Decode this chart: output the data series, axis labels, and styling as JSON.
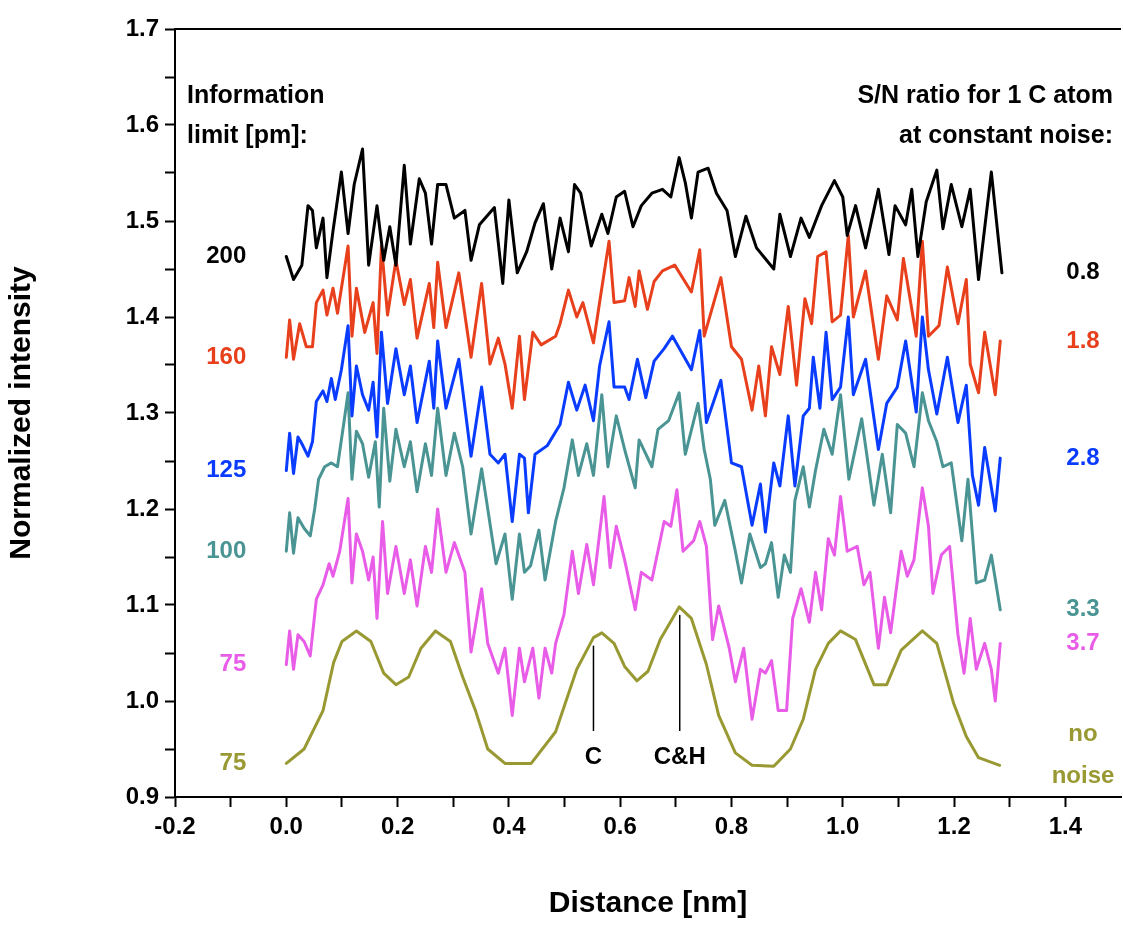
{
  "chart_data": {
    "type": "line",
    "xlabel": "Distance [nm]",
    "ylabel": "Normalized intensity",
    "xlim": [
      -0.2,
      1.5
    ],
    "ylim": [
      0.9,
      1.7
    ],
    "xticks": [
      -0.2,
      {
        "value": -0.1,
        "label": null
      },
      {
        "value": 0,
        "label": "0.0"
      },
      {
        "value": 0.1,
        "label": null
      },
      0.2,
      {
        "value": 0.3,
        "label": null
      },
      0.4,
      {
        "value": 0.5,
        "label": null
      },
      0.6,
      {
        "value": 0.7,
        "label": null
      },
      0.8,
      {
        "value": 0.9,
        "label": null
      },
      {
        "value": 1,
        "label": "1.0"
      },
      {
        "value": 1.1,
        "label": null
      },
      1.2,
      {
        "value": 1.3,
        "label": null
      },
      1.4
    ],
    "yticks": [
      0.9,
      {
        "value": 0.95,
        "label": null
      },
      {
        "value": 1,
        "label": "1.0"
      },
      {
        "value": 1.05,
        "label": null
      },
      1.1,
      {
        "value": 1.15,
        "label": null
      },
      1.2,
      {
        "value": 1.25,
        "label": null
      },
      1.3,
      {
        "value": 1.35,
        "label": null
      },
      1.4,
      {
        "value": 1.45,
        "label": null
      },
      1.5,
      {
        "value": 1.55,
        "label": null
      },
      1.6,
      {
        "value": 1.65,
        "label": null
      },
      1.7
    ],
    "series": [
      {
        "name": "200",
        "color": "#000000",
        "x": [
          0.0,
          0.013,
          0.028,
          0.039,
          0.047,
          0.054,
          0.066,
          0.073,
          0.084,
          0.099,
          0.111,
          0.122,
          0.137,
          0.148,
          0.163,
          0.175,
          0.186,
          0.197,
          0.212,
          0.223,
          0.239,
          0.25,
          0.261,
          0.272,
          0.287,
          0.302,
          0.321,
          0.332,
          0.347,
          0.374,
          0.389,
          0.4,
          0.415,
          0.432,
          0.447,
          0.462,
          0.477,
          0.492,
          0.507,
          0.518,
          0.529,
          0.548,
          0.567,
          0.578,
          0.593,
          0.608,
          0.623,
          0.638,
          0.657,
          0.676,
          0.691,
          0.706,
          0.717,
          0.728,
          0.74,
          0.758,
          0.773,
          0.792,
          0.807,
          0.826,
          0.845,
          0.876,
          0.887,
          0.906,
          0.925,
          0.94,
          0.962,
          0.985,
          1.0,
          1.008,
          1.023,
          1.041,
          1.064,
          1.083,
          1.094,
          1.113,
          1.124,
          1.135,
          1.15,
          1.169,
          1.18,
          1.195,
          1.214,
          1.229,
          1.244,
          1.267,
          1.286
        ],
        "values": [
          1.463,
          1.439,
          1.454,
          1.516,
          1.511,
          1.472,
          1.503,
          1.441,
          1.49,
          1.551,
          1.487,
          1.538,
          1.575,
          1.454,
          1.516,
          1.459,
          1.494,
          1.454,
          1.558,
          1.476,
          1.544,
          1.529,
          1.476,
          1.538,
          1.538,
          1.503,
          1.511,
          1.459,
          1.496,
          1.514,
          1.435,
          1.522,
          1.446,
          1.468,
          1.498,
          1.518,
          1.45,
          1.503,
          1.468,
          1.538,
          1.529,
          1.474,
          1.507,
          1.487,
          1.525,
          1.531,
          1.494,
          1.516,
          1.529,
          1.533,
          1.525,
          1.566,
          1.54,
          1.503,
          1.551,
          1.555,
          1.529,
          1.511,
          1.463,
          1.505,
          1.472,
          1.45,
          1.507,
          1.463,
          1.503,
          1.483,
          1.516,
          1.542,
          1.525,
          1.485,
          1.516,
          1.472,
          1.533,
          1.465,
          1.516,
          1.496,
          1.533,
          1.463,
          1.52,
          1.553,
          1.492,
          1.538,
          1.494,
          1.533,
          1.439,
          1.551,
          1.446
        ]
      },
      {
        "name": "160",
        "color": "#e8401c",
        "x": [
          0.0,
          0.006,
          0.013,
          0.024,
          0.036,
          0.047,
          0.054,
          0.066,
          0.073,
          0.084,
          0.092,
          0.111,
          0.118,
          0.126,
          0.141,
          0.156,
          0.163,
          0.171,
          0.182,
          0.197,
          0.212,
          0.223,
          0.235,
          0.257,
          0.265,
          0.272,
          0.287,
          0.31,
          0.332,
          0.351,
          0.366,
          0.381,
          0.393,
          0.406,
          0.419,
          0.428,
          0.443,
          0.458,
          0.484,
          0.492,
          0.507,
          0.522,
          0.533,
          0.552,
          0.563,
          0.58,
          0.589,
          0.608,
          0.616,
          0.627,
          0.634,
          0.649,
          0.661,
          0.676,
          0.698,
          0.728,
          0.743,
          0.751,
          0.781,
          0.8,
          0.818,
          0.837,
          0.849,
          0.861,
          0.872,
          0.887,
          0.902,
          0.917,
          0.932,
          0.944,
          0.955,
          0.97,
          0.981,
          0.996,
          1.01,
          1.019,
          1.041,
          1.064,
          1.079,
          1.098,
          1.109,
          1.132,
          1.143,
          1.154,
          1.173,
          1.188,
          1.207,
          1.222,
          1.229,
          1.244,
          1.255,
          1.274,
          1.283
        ],
        "values": [
          1.358,
          1.397,
          1.356,
          1.393,
          1.369,
          1.369,
          1.415,
          1.428,
          1.402,
          1.43,
          1.404,
          1.474,
          1.38,
          1.43,
          1.384,
          1.415,
          1.362,
          1.474,
          1.402,
          1.459,
          1.413,
          1.439,
          1.378,
          1.435,
          1.389,
          1.457,
          1.389,
          1.446,
          1.358,
          1.435,
          1.351,
          1.378,
          1.351,
          1.305,
          1.38,
          1.314,
          1.384,
          1.371,
          1.38,
          1.393,
          1.428,
          1.4,
          1.415,
          1.373,
          1.415,
          1.479,
          1.415,
          1.417,
          1.441,
          1.411,
          1.448,
          1.408,
          1.437,
          1.448,
          1.454,
          1.426,
          1.47,
          1.38,
          1.441,
          1.369,
          1.356,
          1.303,
          1.349,
          1.297,
          1.369,
          1.34,
          1.411,
          1.329,
          1.419,
          1.393,
          1.463,
          1.468,
          1.395,
          1.402,
          1.485,
          1.4,
          1.448,
          1.356,
          1.422,
          1.397,
          1.461,
          1.38,
          1.479,
          1.38,
          1.391,
          1.452,
          1.393,
          1.439,
          1.351,
          1.321,
          1.384,
          1.319,
          1.375
        ]
      },
      {
        "name": "125",
        "color": "#0a3cff",
        "x": [
          0.0,
          0.006,
          0.013,
          0.021,
          0.028,
          0.039,
          0.047,
          0.054,
          0.066,
          0.073,
          0.081,
          0.088,
          0.099,
          0.111,
          0.118,
          0.126,
          0.137,
          0.148,
          0.156,
          0.163,
          0.171,
          0.182,
          0.197,
          0.212,
          0.223,
          0.235,
          0.257,
          0.265,
          0.272,
          0.287,
          0.31,
          0.332,
          0.351,
          0.366,
          0.381,
          0.393,
          0.406,
          0.419,
          0.428,
          0.435,
          0.447,
          0.469,
          0.492,
          0.507,
          0.522,
          0.537,
          0.552,
          0.563,
          0.58,
          0.589,
          0.608,
          0.616,
          0.631,
          0.646,
          0.661,
          0.679,
          0.694,
          0.728,
          0.743,
          0.755,
          0.781,
          0.8,
          0.818,
          0.837,
          0.852,
          0.861,
          0.876,
          0.887,
          0.902,
          0.914,
          0.929,
          0.94,
          0.947,
          0.959,
          0.97,
          0.981,
          0.996,
          1.01,
          1.019,
          1.041,
          1.064,
          1.079,
          1.098,
          1.113,
          1.132,
          1.143,
          1.154,
          1.169,
          1.188,
          1.207,
          1.222,
          1.233,
          1.244,
          1.255,
          1.274,
          1.283
        ],
        "values": [
          1.24,
          1.279,
          1.237,
          1.275,
          1.268,
          1.255,
          1.27,
          1.312,
          1.323,
          1.312,
          1.336,
          1.314,
          1.345,
          1.391,
          1.297,
          1.349,
          1.319,
          1.303,
          1.332,
          1.275,
          1.384,
          1.31,
          1.367,
          1.319,
          1.349,
          1.29,
          1.354,
          1.305,
          1.375,
          1.305,
          1.356,
          1.255,
          1.327,
          1.257,
          1.248,
          1.257,
          1.187,
          1.257,
          1.253,
          1.196,
          1.257,
          1.266,
          1.288,
          1.332,
          1.303,
          1.329,
          1.292,
          1.349,
          1.395,
          1.327,
          1.327,
          1.314,
          1.356,
          1.316,
          1.354,
          1.367,
          1.38,
          1.345,
          1.386,
          1.29,
          1.334,
          1.248,
          1.244,
          1.183,
          1.226,
          1.176,
          1.248,
          1.224,
          1.297,
          1.224,
          1.297,
          1.305,
          1.358,
          1.305,
          1.384,
          1.314,
          1.327,
          1.4,
          1.319,
          1.356,
          1.262,
          1.31,
          1.327,
          1.375,
          1.301,
          1.4,
          1.345,
          1.299,
          1.358,
          1.29,
          1.329,
          1.235,
          1.204,
          1.264,
          1.198,
          1.253
        ]
      },
      {
        "name": "100",
        "color": "#4a9494",
        "x": [
          0.0,
          0.006,
          0.013,
          0.021,
          0.032,
          0.043,
          0.051,
          0.058,
          0.069,
          0.081,
          0.092,
          0.103,
          0.111,
          0.118,
          0.126,
          0.137,
          0.148,
          0.16,
          0.167,
          0.175,
          0.186,
          0.197,
          0.212,
          0.223,
          0.235,
          0.25,
          0.261,
          0.272,
          0.287,
          0.302,
          0.317,
          0.332,
          0.351,
          0.366,
          0.377,
          0.393,
          0.406,
          0.419,
          0.428,
          0.439,
          0.454,
          0.465,
          0.484,
          0.499,
          0.514,
          0.525,
          0.54,
          0.552,
          0.567,
          0.578,
          0.593,
          0.608,
          0.627,
          0.634,
          0.657,
          0.668,
          0.687,
          0.706,
          0.717,
          0.74,
          0.751,
          0.762,
          0.77,
          0.788,
          0.807,
          0.818,
          0.833,
          0.852,
          0.861,
          0.872,
          0.884,
          0.895,
          0.906,
          0.914,
          0.929,
          0.94,
          0.951,
          0.966,
          0.981,
          0.996,
          1.011,
          1.034,
          1.056,
          1.071,
          1.086,
          1.098,
          1.113,
          1.128,
          1.143,
          1.154,
          1.169,
          1.18,
          1.195,
          1.214,
          1.225,
          1.24,
          1.255,
          1.267,
          1.283
        ],
        "values": [
          1.156,
          1.196,
          1.154,
          1.191,
          1.18,
          1.172,
          1.2,
          1.231,
          1.244,
          1.248,
          1.244,
          1.288,
          1.321,
          1.231,
          1.281,
          1.268,
          1.233,
          1.27,
          1.202,
          1.305,
          1.229,
          1.283,
          1.244,
          1.27,
          1.218,
          1.268,
          1.235,
          1.305,
          1.235,
          1.279,
          1.244,
          1.174,
          1.242,
          1.185,
          1.143,
          1.174,
          1.106,
          1.174,
          1.134,
          1.141,
          1.178,
          1.126,
          1.187,
          1.222,
          1.272,
          1.235,
          1.268,
          1.235,
          1.319,
          1.244,
          1.297,
          1.262,
          1.222,
          1.272,
          1.244,
          1.283,
          1.292,
          1.321,
          1.257,
          1.31,
          1.262,
          1.231,
          1.183,
          1.209,
          1.156,
          1.123,
          1.174,
          1.139,
          1.143,
          1.165,
          1.108,
          1.152,
          1.134,
          1.209,
          1.244,
          1.202,
          1.24,
          1.283,
          1.257,
          1.319,
          1.231,
          1.294,
          1.204,
          1.257,
          1.196,
          1.288,
          1.279,
          1.244,
          1.321,
          1.292,
          1.27,
          1.244,
          1.248,
          1.167,
          1.231,
          1.123,
          1.126,
          1.152,
          1.095
        ]
      },
      {
        "name": "75",
        "color": "#e85ce8",
        "x": [
          0.0,
          0.006,
          0.013,
          0.021,
          0.032,
          0.043,
          0.054,
          0.066,
          0.077,
          0.084,
          0.096,
          0.111,
          0.118,
          0.126,
          0.137,
          0.148,
          0.156,
          0.163,
          0.173,
          0.182,
          0.197,
          0.212,
          0.223,
          0.235,
          0.25,
          0.261,
          0.272,
          0.287,
          0.302,
          0.321,
          0.332,
          0.351,
          0.362,
          0.381,
          0.393,
          0.406,
          0.419,
          0.428,
          0.443,
          0.454,
          0.465,
          0.477,
          0.484,
          0.499,
          0.514,
          0.525,
          0.54,
          0.552,
          0.571,
          0.582,
          0.593,
          0.608,
          0.627,
          0.638,
          0.657,
          0.679,
          0.691,
          0.702,
          0.713,
          0.732,
          0.743,
          0.755,
          0.766,
          0.777,
          0.796,
          0.807,
          0.822,
          0.837,
          0.852,
          0.861,
          0.872,
          0.884,
          0.899,
          0.91,
          0.925,
          0.94,
          0.951,
          0.962,
          0.974,
          0.985,
          0.996,
          1.008,
          1.026,
          1.038,
          1.049,
          1.064,
          1.075,
          1.086,
          1.105,
          1.116,
          1.128,
          1.143,
          1.154,
          1.162,
          1.177,
          1.192,
          1.207,
          1.218,
          1.229,
          1.24,
          1.255,
          1.267,
          1.274,
          1.283
        ],
        "values": [
          1.038,
          1.073,
          1.033,
          1.069,
          1.062,
          1.047,
          1.106,
          1.121,
          1.143,
          1.13,
          1.156,
          1.211,
          1.123,
          1.174,
          1.156,
          1.126,
          1.15,
          1.086,
          1.187,
          1.112,
          1.161,
          1.112,
          1.147,
          1.099,
          1.161,
          1.134,
          1.2,
          1.134,
          1.165,
          1.134,
          1.051,
          1.117,
          1.06,
          1.029,
          1.055,
          0.985,
          1.055,
          1.02,
          1.055,
          1.003,
          1.055,
          1.029,
          1.06,
          1.09,
          1.156,
          1.112,
          1.163,
          1.121,
          1.213,
          1.139,
          1.182,
          1.147,
          1.095,
          1.134,
          1.126,
          1.187,
          1.182,
          1.22,
          1.156,
          1.167,
          1.187,
          1.161,
          1.064,
          1.099,
          1.055,
          1.02,
          1.055,
          0.981,
          1.033,
          1.029,
          1.042,
          0.99,
          0.99,
          1.086,
          1.117,
          1.082,
          1.134,
          1.095,
          1.169,
          1.152,
          1.213,
          1.156,
          1.161,
          1.121,
          1.134,
          1.055,
          1.108,
          1.071,
          1.156,
          1.13,
          1.147,
          1.222,
          1.182,
          1.112,
          1.152,
          1.161,
          1.069,
          1.029,
          1.086,
          1.033,
          1.06,
          1.033,
          1.0,
          1.06
        ]
      },
      {
        "name": "75",
        "color": "#999933",
        "x": [
          0.0,
          0.032,
          0.066,
          0.085,
          0.1,
          0.126,
          0.152,
          0.175,
          0.197,
          0.22,
          0.242,
          0.268,
          0.295,
          0.317,
          0.34,
          0.362,
          0.393,
          0.44,
          0.484,
          0.522,
          0.552,
          0.567,
          0.589,
          0.608,
          0.63,
          0.65,
          0.672,
          0.706,
          0.728,
          0.755,
          0.777,
          0.807,
          0.837,
          0.876,
          0.906,
          0.929,
          0.951,
          0.974,
          0.996,
          1.023,
          1.056,
          1.079,
          1.105,
          1.143,
          1.169,
          1.199,
          1.222,
          1.244,
          1.282
        ],
        "values": [
          0.935,
          0.95,
          0.99,
          1.04,
          1.062,
          1.073,
          1.062,
          1.029,
          1.017,
          1.025,
          1.055,
          1.073,
          1.062,
          1.025,
          0.99,
          0.95,
          0.935,
          0.935,
          0.968,
          1.033,
          1.066,
          1.071,
          1.06,
          1.036,
          1.021,
          1.031,
          1.064,
          1.098,
          1.086,
          1.038,
          0.985,
          0.946,
          0.933,
          0.932,
          0.95,
          0.981,
          1.033,
          1.06,
          1.073,
          1.064,
          1.017,
          1.017,
          1.053,
          1.073,
          1.06,
          0.998,
          0.963,
          0.941,
          0.933
        ]
      }
    ],
    "annotations": [
      "Information\nlimit [pm]:",
      "S/N ratio for 1 C atom\nat constant noise:",
      "0.8",
      "1.8",
      "2.8",
      "3.3",
      "3.7",
      "no\nnoise",
      {
        "text": "C",
        "x": 0.552,
        "y": 1.066
      },
      {
        "text": "C&H",
        "x": 0.707,
        "y": 1.098
      }
    ]
  }
}
